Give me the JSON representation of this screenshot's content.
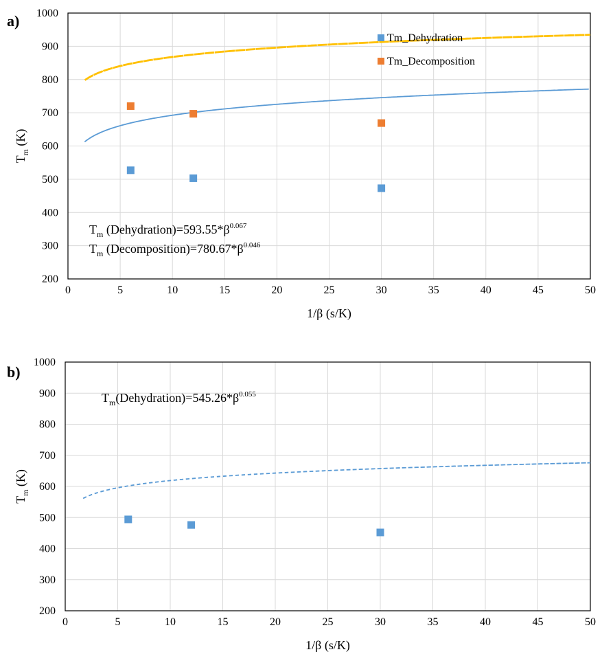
{
  "chart_data": [
    {
      "panel_label": "a)",
      "type": "scatter",
      "xlabel": "1/β (s/K)",
      "ylabel_main": "T",
      "ylabel_sub": "m",
      "ylabel_unit": " (K)",
      "xlim": [
        0,
        50
      ],
      "ylim": [
        200,
        1000
      ],
      "xticks": [
        0,
        5,
        10,
        15,
        20,
        25,
        30,
        35,
        40,
        45,
        50
      ],
      "yticks": [
        200,
        300,
        400,
        500,
        600,
        700,
        800,
        900,
        1000
      ],
      "grid": true,
      "legend_position": "top-right",
      "series": [
        {
          "name": "Tm_Dehydration",
          "color": "#5b9bd5",
          "marker": "square",
          "x": [
            6,
            12,
            30
          ],
          "y": [
            527,
            503,
            473
          ],
          "fit": {
            "a": 593.55,
            "b": 0.067,
            "color": "#5b9bd5",
            "dash": "5,4",
            "width": 1.8
          }
        },
        {
          "name": "Tm_Decomposition",
          "color": "#ed7d31",
          "marker": "square",
          "x": [
            6,
            12,
            30
          ],
          "y": [
            720,
            697,
            669
          ],
          "fit": {
            "a": 780.67,
            "b": 0.046,
            "color": "#ffc000",
            "dash": "9,6",
            "width": 2.8
          }
        }
      ],
      "annotations": [
        {
          "T": "T",
          "sub": "m",
          "text": " (Dehydration)=593.55*β",
          "sup": "0.067"
        },
        {
          "T": "T",
          "sub": "m",
          "text": " (Decomposition)=780.67*β",
          "sup": "0.046"
        }
      ]
    },
    {
      "panel_label": "b)",
      "type": "scatter",
      "xlabel": "1/β (s/K)",
      "ylabel_main": "T",
      "ylabel_sub": "m",
      "ylabel_unit": " (K)",
      "xlim": [
        0,
        50
      ],
      "ylim": [
        200,
        1000
      ],
      "xticks": [
        0,
        5,
        10,
        15,
        20,
        25,
        30,
        35,
        40,
        45,
        50
      ],
      "yticks": [
        200,
        300,
        400,
        500,
        600,
        700,
        800,
        900,
        1000
      ],
      "grid": true,
      "series": [
        {
          "color": "#5b9bd5",
          "marker": "square",
          "x": [
            6,
            12,
            30
          ],
          "y": [
            494,
            476,
            452
          ],
          "fit": {
            "a": 545.26,
            "b": 0.055,
            "color": "#5b9bd5",
            "dash": "5,4",
            "width": 1.8
          }
        }
      ],
      "annotations": [
        {
          "T": "T",
          "sub": "m",
          "text": "(Dehydration)=545.26*β",
          "sup": "0.055"
        }
      ]
    }
  ]
}
